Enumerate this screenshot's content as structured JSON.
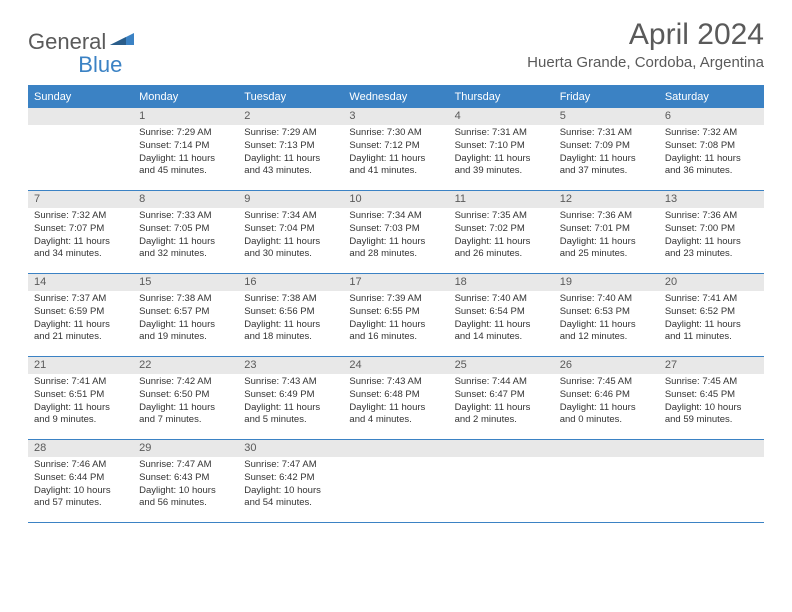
{
  "logo": {
    "part1": "General",
    "part2": "Blue"
  },
  "title": "April 2024",
  "location": "Huerta Grande, Cordoba, Argentina",
  "colors": {
    "brand": "#3b82c4",
    "header_bg": "#3b82c4",
    "header_text": "#ffffff",
    "daynum_bg": "#e8e8e8",
    "text_gray": "#5a5a5a",
    "body_text": "#333333",
    "page_bg": "#ffffff"
  },
  "weekdays": [
    "Sunday",
    "Monday",
    "Tuesday",
    "Wednesday",
    "Thursday",
    "Friday",
    "Saturday"
  ],
  "weeks": [
    [
      null,
      {
        "n": "1",
        "sr": "Sunrise: 7:29 AM",
        "ss": "Sunset: 7:14 PM",
        "d1": "Daylight: 11 hours",
        "d2": "and 45 minutes."
      },
      {
        "n": "2",
        "sr": "Sunrise: 7:29 AM",
        "ss": "Sunset: 7:13 PM",
        "d1": "Daylight: 11 hours",
        "d2": "and 43 minutes."
      },
      {
        "n": "3",
        "sr": "Sunrise: 7:30 AM",
        "ss": "Sunset: 7:12 PM",
        "d1": "Daylight: 11 hours",
        "d2": "and 41 minutes."
      },
      {
        "n": "4",
        "sr": "Sunrise: 7:31 AM",
        "ss": "Sunset: 7:10 PM",
        "d1": "Daylight: 11 hours",
        "d2": "and 39 minutes."
      },
      {
        "n": "5",
        "sr": "Sunrise: 7:31 AM",
        "ss": "Sunset: 7:09 PM",
        "d1": "Daylight: 11 hours",
        "d2": "and 37 minutes."
      },
      {
        "n": "6",
        "sr": "Sunrise: 7:32 AM",
        "ss": "Sunset: 7:08 PM",
        "d1": "Daylight: 11 hours",
        "d2": "and 36 minutes."
      }
    ],
    [
      {
        "n": "7",
        "sr": "Sunrise: 7:32 AM",
        "ss": "Sunset: 7:07 PM",
        "d1": "Daylight: 11 hours",
        "d2": "and 34 minutes."
      },
      {
        "n": "8",
        "sr": "Sunrise: 7:33 AM",
        "ss": "Sunset: 7:05 PM",
        "d1": "Daylight: 11 hours",
        "d2": "and 32 minutes."
      },
      {
        "n": "9",
        "sr": "Sunrise: 7:34 AM",
        "ss": "Sunset: 7:04 PM",
        "d1": "Daylight: 11 hours",
        "d2": "and 30 minutes."
      },
      {
        "n": "10",
        "sr": "Sunrise: 7:34 AM",
        "ss": "Sunset: 7:03 PM",
        "d1": "Daylight: 11 hours",
        "d2": "and 28 minutes."
      },
      {
        "n": "11",
        "sr": "Sunrise: 7:35 AM",
        "ss": "Sunset: 7:02 PM",
        "d1": "Daylight: 11 hours",
        "d2": "and 26 minutes."
      },
      {
        "n": "12",
        "sr": "Sunrise: 7:36 AM",
        "ss": "Sunset: 7:01 PM",
        "d1": "Daylight: 11 hours",
        "d2": "and 25 minutes."
      },
      {
        "n": "13",
        "sr": "Sunrise: 7:36 AM",
        "ss": "Sunset: 7:00 PM",
        "d1": "Daylight: 11 hours",
        "d2": "and 23 minutes."
      }
    ],
    [
      {
        "n": "14",
        "sr": "Sunrise: 7:37 AM",
        "ss": "Sunset: 6:59 PM",
        "d1": "Daylight: 11 hours",
        "d2": "and 21 minutes."
      },
      {
        "n": "15",
        "sr": "Sunrise: 7:38 AM",
        "ss": "Sunset: 6:57 PM",
        "d1": "Daylight: 11 hours",
        "d2": "and 19 minutes."
      },
      {
        "n": "16",
        "sr": "Sunrise: 7:38 AM",
        "ss": "Sunset: 6:56 PM",
        "d1": "Daylight: 11 hours",
        "d2": "and 18 minutes."
      },
      {
        "n": "17",
        "sr": "Sunrise: 7:39 AM",
        "ss": "Sunset: 6:55 PM",
        "d1": "Daylight: 11 hours",
        "d2": "and 16 minutes."
      },
      {
        "n": "18",
        "sr": "Sunrise: 7:40 AM",
        "ss": "Sunset: 6:54 PM",
        "d1": "Daylight: 11 hours",
        "d2": "and 14 minutes."
      },
      {
        "n": "19",
        "sr": "Sunrise: 7:40 AM",
        "ss": "Sunset: 6:53 PM",
        "d1": "Daylight: 11 hours",
        "d2": "and 12 minutes."
      },
      {
        "n": "20",
        "sr": "Sunrise: 7:41 AM",
        "ss": "Sunset: 6:52 PM",
        "d1": "Daylight: 11 hours",
        "d2": "and 11 minutes."
      }
    ],
    [
      {
        "n": "21",
        "sr": "Sunrise: 7:41 AM",
        "ss": "Sunset: 6:51 PM",
        "d1": "Daylight: 11 hours",
        "d2": "and 9 minutes."
      },
      {
        "n": "22",
        "sr": "Sunrise: 7:42 AM",
        "ss": "Sunset: 6:50 PM",
        "d1": "Daylight: 11 hours",
        "d2": "and 7 minutes."
      },
      {
        "n": "23",
        "sr": "Sunrise: 7:43 AM",
        "ss": "Sunset: 6:49 PM",
        "d1": "Daylight: 11 hours",
        "d2": "and 5 minutes."
      },
      {
        "n": "24",
        "sr": "Sunrise: 7:43 AM",
        "ss": "Sunset: 6:48 PM",
        "d1": "Daylight: 11 hours",
        "d2": "and 4 minutes."
      },
      {
        "n": "25",
        "sr": "Sunrise: 7:44 AM",
        "ss": "Sunset: 6:47 PM",
        "d1": "Daylight: 11 hours",
        "d2": "and 2 minutes."
      },
      {
        "n": "26",
        "sr": "Sunrise: 7:45 AM",
        "ss": "Sunset: 6:46 PM",
        "d1": "Daylight: 11 hours",
        "d2": "and 0 minutes."
      },
      {
        "n": "27",
        "sr": "Sunrise: 7:45 AM",
        "ss": "Sunset: 6:45 PM",
        "d1": "Daylight: 10 hours",
        "d2": "and 59 minutes."
      }
    ],
    [
      {
        "n": "28",
        "sr": "Sunrise: 7:46 AM",
        "ss": "Sunset: 6:44 PM",
        "d1": "Daylight: 10 hours",
        "d2": "and 57 minutes."
      },
      {
        "n": "29",
        "sr": "Sunrise: 7:47 AM",
        "ss": "Sunset: 6:43 PM",
        "d1": "Daylight: 10 hours",
        "d2": "and 56 minutes."
      },
      {
        "n": "30",
        "sr": "Sunrise: 7:47 AM",
        "ss": "Sunset: 6:42 PM",
        "d1": "Daylight: 10 hours",
        "d2": "and 54 minutes."
      },
      null,
      null,
      null,
      null
    ]
  ]
}
